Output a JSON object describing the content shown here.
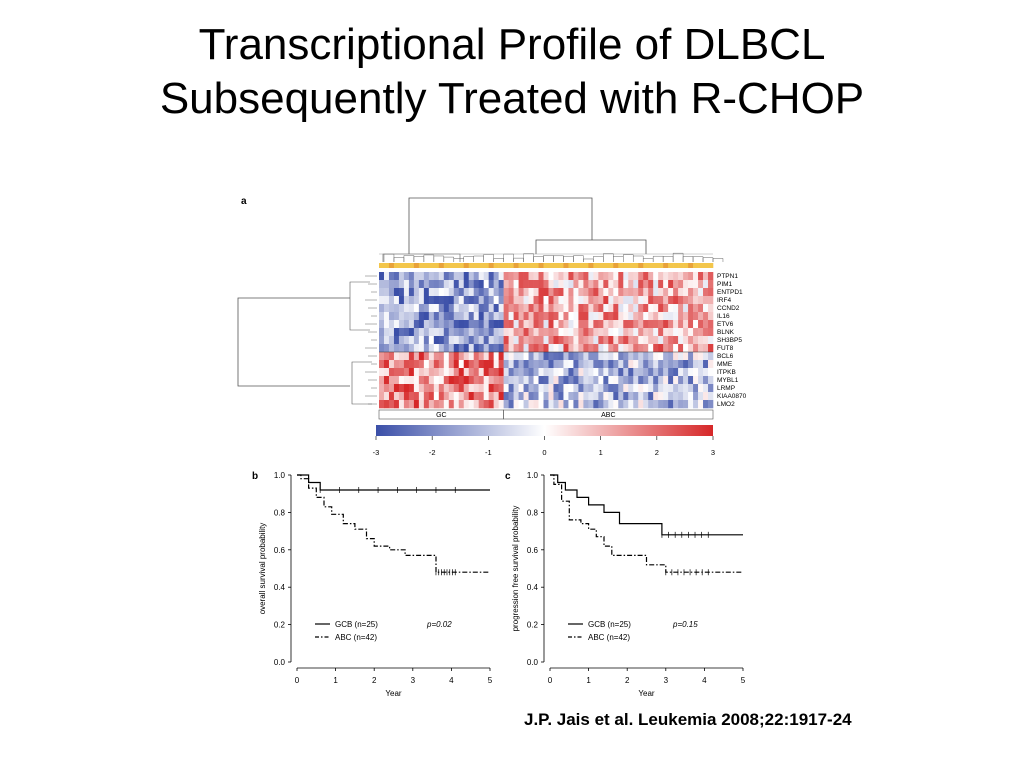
{
  "slide": {
    "title_line1": "Transcriptional Profile of DLBCL",
    "title_line2": "Subsequently Treated with R-CHOP",
    "citation": "J.P. Jais et al. Leukemia 2008;22:1917-24"
  },
  "colors": {
    "low": "#3b4fa8",
    "mid": "#ffffff",
    "high": "#d62728",
    "groupbar": "#f3c64b"
  },
  "chart_data": [
    {
      "type": "heatmap",
      "panel": "a",
      "rows": [
        "PTPN1",
        "PIM1",
        "ENTPD1",
        "IRF4",
        "CCND2",
        "IL16",
        "ETV6",
        "BLNK",
        "SH3BP5",
        "FUT8",
        "BCL6",
        "MME",
        "ITPKB",
        "MYBL1",
        "LRMP",
        "KIAA0870",
        "LMO2"
      ],
      "column_groups": [
        {
          "name": "GC",
          "n": 25
        },
        {
          "name": "ABC",
          "n": 42
        }
      ],
      "row_pattern": {
        "up_in_ABC": 10,
        "up_in_GC": 7
      },
      "color_scale": {
        "min": -3,
        "max": 3,
        "ticks": [
          -3,
          -2,
          -1,
          0,
          1,
          2,
          3
        ]
      }
    },
    {
      "type": "line",
      "panel": "b",
      "ylabel": "overall survival probability",
      "xlabel": "Year",
      "xlim": [
        0,
        5
      ],
      "ylim": [
        0,
        1
      ],
      "xticks": [
        "0",
        "1",
        "2",
        "3",
        "4",
        "5"
      ],
      "yticks": [
        "0.0",
        "0.2",
        "0.4",
        "0.6",
        "0.8",
        "1.0"
      ],
      "pvalue": "p=0.02",
      "series": [
        {
          "name": "GCB (n=25)",
          "style": "solid",
          "x": [
            0,
            0.3,
            0.3,
            0.6,
            0.6,
            5
          ],
          "y": [
            1.0,
            1.0,
            0.96,
            0.96,
            0.92,
            0.92
          ]
        },
        {
          "name": "ABC (n=42)",
          "style": "dashdot",
          "x": [
            0,
            0.1,
            0.1,
            0.3,
            0.3,
            0.5,
            0.5,
            0.7,
            0.7,
            0.9,
            0.9,
            1.2,
            1.2,
            1.5,
            1.5,
            1.8,
            1.8,
            2.0,
            2.0,
            2.4,
            2.4,
            2.8,
            2.8,
            3.6,
            3.6,
            5
          ],
          "y": [
            1.0,
            1.0,
            0.98,
            0.98,
            0.93,
            0.93,
            0.88,
            0.88,
            0.83,
            0.83,
            0.79,
            0.79,
            0.74,
            0.74,
            0.71,
            0.71,
            0.66,
            0.66,
            0.62,
            0.62,
            0.6,
            0.6,
            0.57,
            0.57,
            0.48,
            0.48
          ]
        }
      ]
    },
    {
      "type": "line",
      "panel": "c",
      "ylabel": "progression free survival probability",
      "xlabel": "Year",
      "xlim": [
        0,
        5
      ],
      "ylim": [
        0,
        1
      ],
      "xticks": [
        "0",
        "1",
        "2",
        "3",
        "4",
        "5"
      ],
      "yticks": [
        "0.0",
        "0.2",
        "0.4",
        "0.6",
        "0.8",
        "1.0"
      ],
      "pvalue": "p=0.15",
      "series": [
        {
          "name": "GCB (n=25)",
          "style": "solid",
          "x": [
            0,
            0.2,
            0.2,
            0.4,
            0.4,
            0.7,
            0.7,
            1.0,
            1.0,
            1.4,
            1.4,
            1.8,
            1.8,
            2.9,
            2.9,
            5
          ],
          "y": [
            1.0,
            1.0,
            0.96,
            0.96,
            0.92,
            0.92,
            0.88,
            0.88,
            0.84,
            0.84,
            0.8,
            0.8,
            0.74,
            0.74,
            0.68,
            0.68
          ]
        },
        {
          "name": "ABC (n=42)",
          "style": "dashdot",
          "x": [
            0,
            0.1,
            0.1,
            0.3,
            0.3,
            0.5,
            0.5,
            0.8,
            0.8,
            1.0,
            1.0,
            1.2,
            1.2,
            1.4,
            1.4,
            1.6,
            1.6,
            2.5,
            2.5,
            3.0,
            3.0,
            5
          ],
          "y": [
            1.0,
            1.0,
            0.95,
            0.95,
            0.86,
            0.86,
            0.76,
            0.76,
            0.74,
            0.74,
            0.71,
            0.71,
            0.67,
            0.67,
            0.62,
            0.62,
            0.57,
            0.57,
            0.52,
            0.52,
            0.48,
            0.48
          ]
        }
      ]
    }
  ]
}
